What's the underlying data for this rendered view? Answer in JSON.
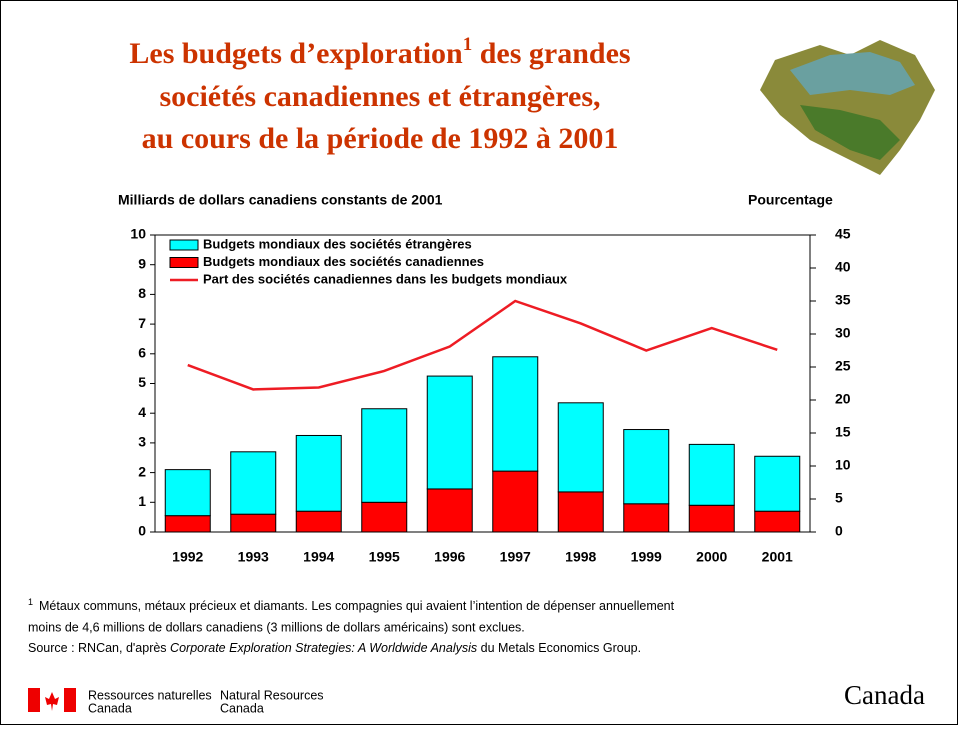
{
  "header": {
    "title": {
      "line1_start": "Les budgets d’exploration",
      "line1_note": "1",
      "line1_end": " des grandes",
      "line2": "sociétés canadiennes et étrangères,",
      "line3": "au cours de la période de 1992 à 2001"
    }
  },
  "chart_data": {
    "type": "bar",
    "stacked": true,
    "y_label": "Milliards de dollars canadiens constants de 2001",
    "y2_label": "Pourcentage",
    "categories": [
      "1992",
      "1993",
      "1994",
      "1995",
      "1996",
      "1997",
      "1998",
      "1999",
      "2000",
      "2001"
    ],
    "series": [
      {
        "name": "Budgets mondiaux des sociétés étrangères",
        "color": "#00ffff",
        "values": [
          1.55,
          2.1,
          2.55,
          3.15,
          3.8,
          3.85,
          3.0,
          2.5,
          2.05,
          1.85
        ]
      },
      {
        "name": "Budgets mondiaux des sociétés canadiennes",
        "color": "#ff0000",
        "values": [
          0.55,
          0.6,
          0.7,
          1.0,
          1.45,
          2.05,
          1.35,
          0.95,
          0.9,
          0.7
        ]
      },
      {
        "name": "Part des sociétés canadiennes dans les budgets mondiaux",
        "color": "#ee1c24",
        "type": "line",
        "axis": "y2",
        "values": [
          25.3,
          21.6,
          21.9,
          24.4,
          28.1,
          35.0,
          31.6,
          27.5,
          30.9,
          27.6
        ]
      }
    ],
    "ylim": [
      0,
      10
    ],
    "yticks": [
      0,
      1,
      2,
      3,
      4,
      5,
      6,
      7,
      8,
      9,
      10
    ],
    "y2lim": [
      0,
      45
    ],
    "y2ticks": [
      0,
      5,
      10,
      15,
      20,
      25,
      30,
      35,
      40,
      45
    ]
  },
  "footnote": {
    "marker": "1",
    "lines": [
      "Métaux communs, métaux précieux et diamants. Les compagnies qui avaient l’intention de dépenser annuellement",
      "moins de 4,6 millions de dollars canadiens (3 millions de dollars américains) sont exclues."
    ]
  },
  "source": {
    "prefix": "Source : RNCan, d'après ",
    "title": "Corporate Exploration Strategies:  A Worldwide Analysis",
    "suffix": " du Metals Economics Group."
  },
  "footer": {
    "fr_line1": "Ressources naturelles",
    "fr_line2": "Canada",
    "en_line1": "Natural Resources",
    "en_line2": "Canada",
    "wordmark": "Canada"
  }
}
